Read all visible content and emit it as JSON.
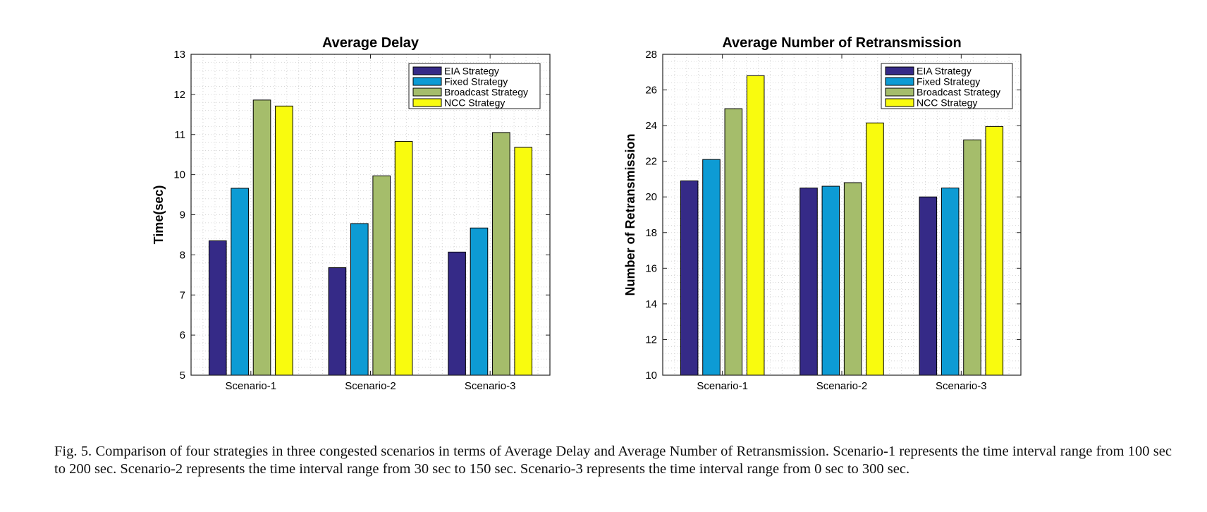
{
  "chart_data": [
    {
      "type": "bar",
      "title": "Average Delay",
      "xlabel": "",
      "ylabel": "Time(sec)",
      "categories": [
        "Scenario-1",
        "Scenario-2",
        "Scenario-3"
      ],
      "ylim": [
        5,
        13
      ],
      "yticks": [
        5,
        6,
        7,
        8,
        9,
        10,
        11,
        12,
        13
      ],
      "grid": true,
      "legend_position": "top-right",
      "series": [
        {
          "name": "EIA Strategy",
          "color": "#352a87",
          "values": [
            8.35,
            7.68,
            8.07
          ]
        },
        {
          "name": "Fixed Strategy",
          "color": "#0d9bd4",
          "values": [
            9.66,
            8.78,
            8.67
          ]
        },
        {
          "name": "Broadcast Strategy",
          "color": "#a5bd6b",
          "values": [
            11.86,
            9.97,
            11.05
          ]
        },
        {
          "name": "NCC Strategy",
          "color": "#f9fb0e",
          "values": [
            11.71,
            10.83,
            10.68
          ]
        }
      ]
    },
    {
      "type": "bar",
      "title": "Average Number of Retransmission",
      "xlabel": "",
      "ylabel": "Number of Retransmission",
      "categories": [
        "Scenario-1",
        "Scenario-2",
        "Scenario-3"
      ],
      "ylim": [
        10,
        28
      ],
      "yticks": [
        10,
        12,
        14,
        16,
        18,
        20,
        22,
        24,
        26,
        28
      ],
      "grid": true,
      "legend_position": "top-right",
      "series": [
        {
          "name": "EIA Strategy",
          "color": "#352a87",
          "values": [
            20.9,
            20.5,
            20.0
          ]
        },
        {
          "name": "Fixed Strategy",
          "color": "#0d9bd4",
          "values": [
            22.1,
            20.6,
            20.5
          ]
        },
        {
          "name": "Broadcast Strategy",
          "color": "#a5bd6b",
          "values": [
            24.95,
            20.8,
            23.2
          ]
        },
        {
          "name": "NCC Strategy",
          "color": "#f9fb0e",
          "values": [
            26.8,
            24.15,
            23.95
          ]
        }
      ]
    }
  ],
  "caption": "Fig. 5.  Comparison of four strategies in three congested scenarios in terms of Average Delay and Average Number of Retransmission. Scenario-1 represents the time interval range from 100 sec to 200 sec. Scenario-2 represents the time interval range from 30 sec to 150 sec. Scenario-3 represents the time interval range from 0 sec to 300 sec."
}
